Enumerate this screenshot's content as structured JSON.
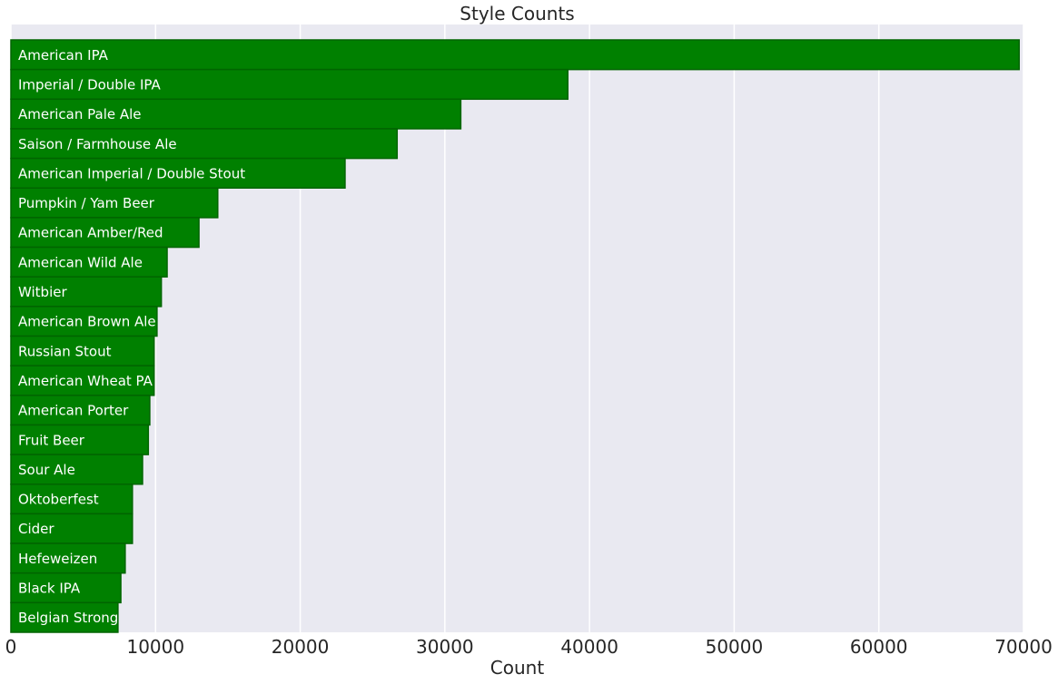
{
  "chart_data": {
    "type": "bar",
    "orientation": "horizontal",
    "title": "Style Counts",
    "xlabel": "Count",
    "ylabel": "",
    "xlim": [
      0,
      70000
    ],
    "xticks": [
      0,
      10000,
      20000,
      30000,
      40000,
      50000,
      60000,
      70000
    ],
    "xtick_labels": [
      "0",
      "10000",
      "20000",
      "30000",
      "40000",
      "50000",
      "60000",
      "70000"
    ],
    "grid": true,
    "categories": [
      "American IPA",
      "Imperial / Double IPA",
      "American Pale Ale",
      "Saison / Farmhouse Ale",
      "American Imperial / Double Stout",
      "Pumpkin / Yam Beer",
      "American Amber/Red",
      "American Wild Ale",
      "Witbier",
      "American Brown Ale",
      "Russian Stout",
      "American Wheat PA",
      "American Porter",
      "Fruit Beer",
      "Sour Ale",
      "Oktoberfest",
      "Cider",
      "Hefeweizen",
      "Black IPA",
      "Belgian Strong"
    ],
    "values": [
      69700,
      38500,
      31100,
      26700,
      23100,
      14300,
      13000,
      10800,
      10400,
      10100,
      9900,
      9900,
      9600,
      9500,
      9100,
      8400,
      8400,
      7900,
      7600,
      7400
    ],
    "bar_color": "#008000",
    "bar_edge_color": "#006400",
    "background_color": "#e9e9f1",
    "grid_color": "#ffffff"
  }
}
